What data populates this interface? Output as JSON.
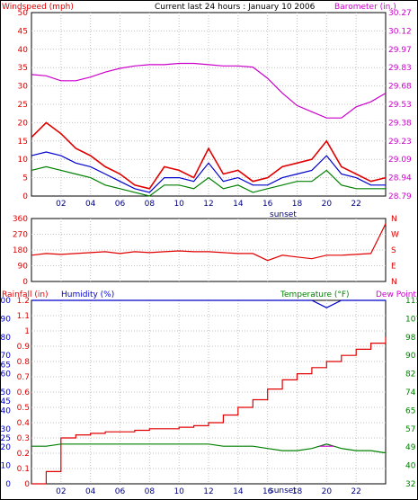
{
  "header": {
    "wind_label": "Windspeed (mph)",
    "title": "Current last 24 hours : January 10 2006",
    "baro_label": "Barometer (in.)"
  },
  "legend3": {
    "rain_label": "Rainfall (in)",
    "humidity_label": "Humidity (%)",
    "temp_label": "Temperature (°F)",
    "dew_label": "Dew Point"
  },
  "colors": {
    "wind": "#e00000",
    "wind_avg": "#0000cc",
    "wind_low": "#008000",
    "baro": "#cc00cc",
    "direction": "#e00000",
    "rain": "#e00000",
    "humidity": "#0000cc",
    "temperature": "#008000",
    "dewpoint": "#cc00cc",
    "axis": "#000000",
    "grid": "#c0c0c0"
  },
  "x_ticks": [
    "02",
    "04",
    "06",
    "08",
    "10",
    "12",
    "14",
    "16",
    "18",
    "20",
    "22"
  ],
  "sunset_label": "sunset",
  "chart_data": [
    {
      "type": "line",
      "title": "Current last 24 hours : January 10 2006",
      "xlabel": "",
      "ylabel": "Windspeed (mph)",
      "ylabel_right": "Barometer (in.)",
      "ylim": [
        0,
        50
      ],
      "ylim_right": [
        28.79,
        30.27
      ],
      "yticks_left": [
        "0",
        "5",
        "10",
        "15",
        "20",
        "25",
        "30",
        "35",
        "40",
        "45",
        "50"
      ],
      "yticks_right": [
        "28.79",
        "28.94",
        "29.09",
        "29.23",
        "29.38",
        "29.53",
        "29.68",
        "29.83",
        "29.97",
        "30.12",
        "30.27"
      ],
      "x": [
        0,
        1,
        2,
        3,
        4,
        5,
        6,
        7,
        8,
        9,
        10,
        11,
        12,
        13,
        14,
        15,
        16,
        17,
        18,
        19,
        20,
        21,
        22,
        23,
        24
      ],
      "series": [
        {
          "name": "Windspeed (mph)",
          "values": [
            16,
            20,
            17,
            13,
            11,
            8,
            6,
            3,
            2,
            8,
            7,
            5,
            13,
            6,
            7,
            4,
            5,
            8,
            9,
            10,
            15,
            8,
            6,
            4,
            5
          ]
        },
        {
          "name": "Windspeed average",
          "values": [
            11,
            12,
            11,
            9,
            8,
            6,
            4,
            2,
            1,
            5,
            5,
            4,
            9,
            4,
            5,
            3,
            3,
            5,
            6,
            7,
            11,
            6,
            5,
            3,
            3
          ]
        },
        {
          "name": "Windspeed low",
          "values": [
            7,
            8,
            7,
            6,
            5,
            3,
            2,
            1,
            0,
            3,
            3,
            2,
            5,
            2,
            3,
            1,
            2,
            3,
            4,
            4,
            7,
            3,
            2,
            2,
            2
          ]
        },
        {
          "name": "Barometer (in.)",
          "values": [
            29.77,
            29.76,
            29.72,
            29.72,
            29.75,
            29.79,
            29.82,
            29.84,
            29.85,
            29.85,
            29.86,
            29.86,
            29.85,
            29.84,
            29.84,
            29.83,
            29.74,
            29.62,
            29.52,
            29.47,
            29.42,
            29.42,
            29.51,
            29.55,
            29.62
          ]
        }
      ]
    },
    {
      "type": "line",
      "title": "",
      "ylabel": "",
      "ylim": [
        0,
        360
      ],
      "yticks_left": [
        "0",
        "90",
        "180",
        "270",
        "360"
      ],
      "yticks_right": [
        "N",
        "E",
        "S",
        "W",
        "N"
      ],
      "x": [
        0,
        1,
        2,
        3,
        4,
        5,
        6,
        7,
        8,
        9,
        10,
        11,
        12,
        13,
        14,
        15,
        16,
        17,
        18,
        19,
        20,
        21,
        22,
        23,
        24
      ],
      "series": [
        {
          "name": "Wind direction",
          "values": [
            150,
            160,
            155,
            160,
            165,
            170,
            160,
            170,
            165,
            170,
            175,
            170,
            170,
            165,
            160,
            160,
            120,
            150,
            140,
            130,
            150,
            150,
            155,
            160,
            330
          ]
        }
      ]
    },
    {
      "type": "line",
      "title": "",
      "ylabel_left": "Rainfall (in)",
      "ylabel_humidity": "Humidity (%)",
      "ylabel_right": "Temperature (°F)",
      "ylim_rain": [
        0,
        1.2
      ],
      "ylim_humidity": [
        0,
        100
      ],
      "ylim_temp": [
        32,
        115
      ],
      "yticks_rain": [
        "0",
        "0.1",
        "0.2",
        "0.3",
        "0.4",
        "0.5",
        "0.6",
        "0.7",
        "0.8",
        "0.9",
        "1",
        "1.1",
        "1.2"
      ],
      "yticks_humidity": [
        "0",
        "10",
        "20",
        "25",
        "30",
        "40",
        "45",
        "50",
        "60",
        "65",
        "70",
        "80",
        "90",
        "100"
      ],
      "yticks_temp": [
        "32",
        "40",
        "49",
        "57",
        "65",
        "74",
        "82",
        "90",
        "98",
        "107",
        "115"
      ],
      "x": [
        0,
        1,
        2,
        3,
        4,
        5,
        6,
        7,
        8,
        9,
        10,
        11,
        12,
        13,
        14,
        15,
        16,
        17,
        18,
        19,
        20,
        21,
        22,
        23,
        24
      ],
      "series": [
        {
          "name": "Rainfall (in)",
          "values": [
            0,
            0.08,
            0.3,
            0.32,
            0.33,
            0.34,
            0.34,
            0.35,
            0.36,
            0.36,
            0.37,
            0.38,
            0.4,
            0.45,
            0.5,
            0.55,
            0.62,
            0.68,
            0.72,
            0.76,
            0.8,
            0.84,
            0.88,
            0.92,
            0.96
          ]
        },
        {
          "name": "Humidity (%)",
          "values": [
            100,
            100,
            100,
            100,
            100,
            100,
            100,
            100,
            100,
            100,
            100,
            100,
            100,
            100,
            100,
            100,
            100,
            100,
            100,
            100,
            96,
            100,
            100,
            100,
            100
          ]
        },
        {
          "name": "Temperature (°F)",
          "values": [
            49,
            49,
            50,
            50,
            50,
            50,
            50,
            50,
            50,
            50,
            50,
            50,
            50,
            49,
            49,
            49,
            48,
            47,
            47,
            48,
            50,
            48,
            47,
            47,
            46
          ]
        },
        {
          "name": "Dew Point",
          "values": [
            null,
            null,
            null,
            null,
            null,
            null,
            null,
            null,
            null,
            null,
            null,
            null,
            null,
            null,
            null,
            null,
            null,
            null,
            null,
            null,
            49,
            null,
            null,
            null,
            null
          ]
        }
      ]
    }
  ]
}
